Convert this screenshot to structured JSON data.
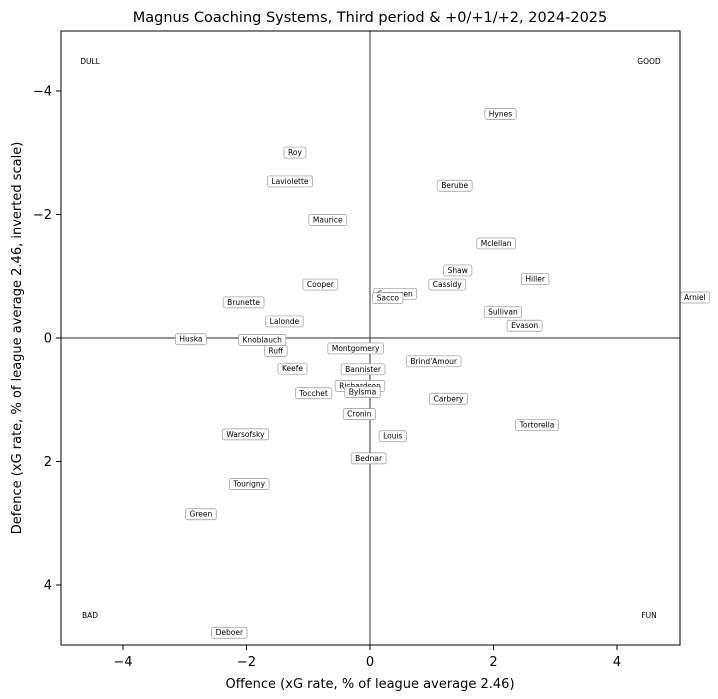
{
  "chart_data": {
    "type": "scatter",
    "title": "Magnus Coaching Systems, Third period & +0/+1/+2, 2024-2025",
    "xlabel": "Offence (xG rate, % of league average 2.46)",
    "ylabel": "Defence (xG rate, % of league average 2.46, inverted scale)",
    "xlim": [
      -5,
      5
    ],
    "ylim": [
      5,
      -5
    ],
    "y_inverted": true,
    "xticks": [
      -4,
      -2,
      0,
      2,
      4
    ],
    "yticks": [
      -4,
      -2,
      0,
      2,
      4
    ],
    "xtick_labels": [
      "−4",
      "−2",
      "0",
      "2",
      "4"
    ],
    "ytick_labels": [
      "−4",
      "−2",
      "0",
      "2",
      "4"
    ],
    "grid": false,
    "reference_lines": {
      "x": 0,
      "y": 0
    },
    "quadrant_labels": {
      "top_left": "DULL",
      "top_right": "GOOD",
      "bottom_left": "BAD",
      "bottom_right": "FUN"
    },
    "points": [
      {
        "name": "Hynes",
        "x": 2.1,
        "y": -3.65
      },
      {
        "name": "Roy",
        "x": -1.22,
        "y": -3.02
      },
      {
        "name": "Laviolette",
        "x": -1.3,
        "y": -2.55
      },
      {
        "name": "Berube",
        "x": 1.36,
        "y": -2.48
      },
      {
        "name": "Maurice",
        "x": -0.69,
        "y": -1.92
      },
      {
        "name": "Mclellan",
        "x": 2.03,
        "y": -1.54
      },
      {
        "name": "Shaw",
        "x": 1.41,
        "y": -1.1
      },
      {
        "name": "Hiller",
        "x": 2.66,
        "y": -0.96
      },
      {
        "name": "Cooper",
        "x": -0.81,
        "y": -0.87
      },
      {
        "name": "Cassidy",
        "x": 1.24,
        "y": -0.87
      },
      {
        "name": "Sorensen",
        "x": 0.4,
        "y": -0.72
      },
      {
        "name": "Sacco",
        "x": 0.28,
        "y": -0.65
      },
      {
        "name": "Arniel",
        "x": 5.24,
        "y": -0.66
      },
      {
        "name": "Brunette",
        "x": -2.05,
        "y": -0.58
      },
      {
        "name": "Sullivan",
        "x": 2.14,
        "y": -0.42
      },
      {
        "name": "Lalonde",
        "x": -1.39,
        "y": -0.27
      },
      {
        "name": "Evason",
        "x": 2.49,
        "y": -0.2
      },
      {
        "name": "Huska",
        "x": -2.9,
        "y": 0.02
      },
      {
        "name": "Knoblauch",
        "x": -1.75,
        "y": 0.03
      },
      {
        "name": "Ruff",
        "x": -1.53,
        "y": 0.21
      },
      {
        "name": "Montgomery",
        "x": -0.24,
        "y": 0.17
      },
      {
        "name": "Brind'Amour",
        "x": 1.02,
        "y": 0.38
      },
      {
        "name": "Keefe",
        "x": -1.26,
        "y": 0.5
      },
      {
        "name": "Bannister",
        "x": -0.12,
        "y": 0.51
      },
      {
        "name": "Richardson",
        "x": -0.17,
        "y": 0.78
      },
      {
        "name": "Bylsma",
        "x": -0.13,
        "y": 0.88
      },
      {
        "name": "Tocchet",
        "x": -0.92,
        "y": 0.9
      },
      {
        "name": "Carbery",
        "x": 1.26,
        "y": 0.99
      },
      {
        "name": "Cronin",
        "x": -0.18,
        "y": 1.24
      },
      {
        "name": "Tortorella",
        "x": 2.69,
        "y": 1.42
      },
      {
        "name": "Warsofsky",
        "x": -2.02,
        "y": 1.57
      },
      {
        "name": "Louis",
        "x": 0.36,
        "y": 1.6
      },
      {
        "name": "Bednar",
        "x": -0.03,
        "y": 1.96
      },
      {
        "name": "Tourigny",
        "x": -1.96,
        "y": 2.38
      },
      {
        "name": "Green",
        "x": -2.74,
        "y": 2.87
      },
      {
        "name": "Deboer",
        "x": -2.28,
        "y": 4.8
      }
    ]
  }
}
